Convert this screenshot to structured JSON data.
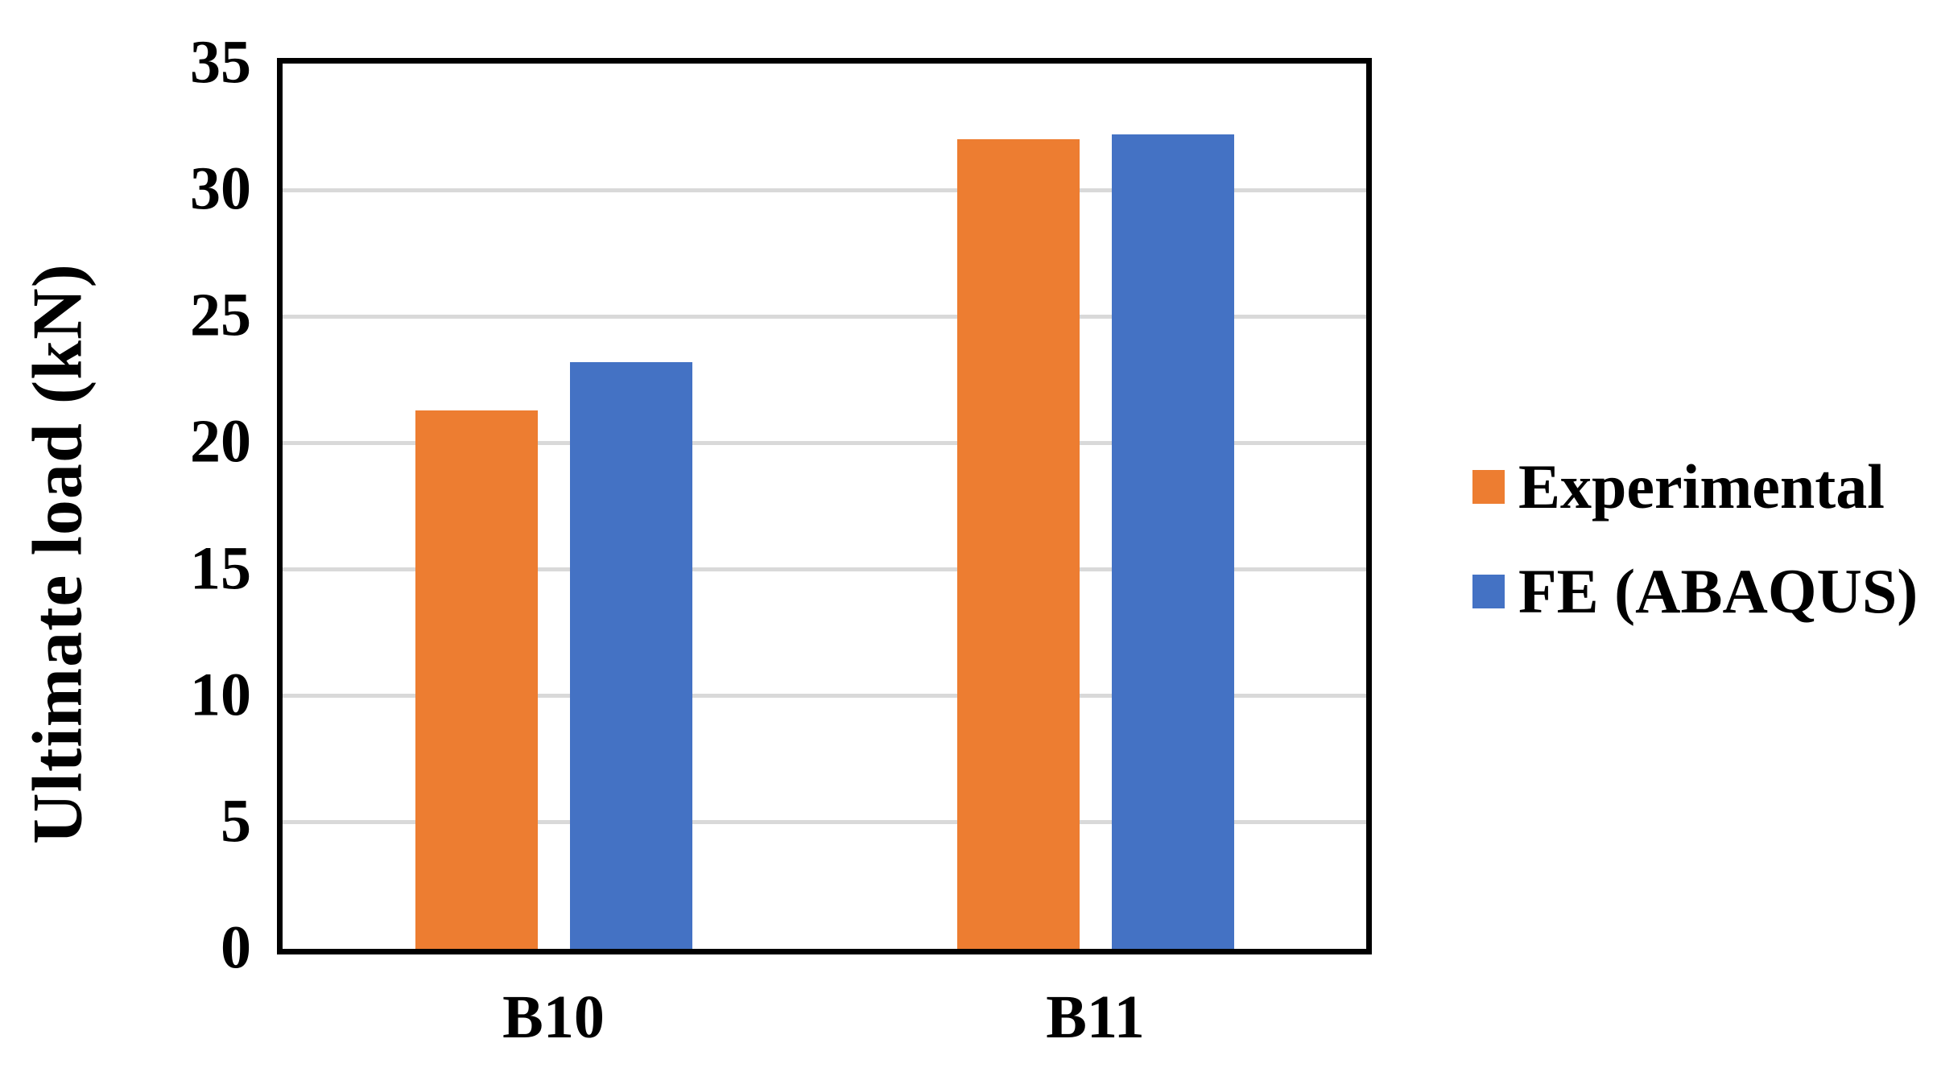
{
  "chart_data": {
    "type": "bar",
    "title": "",
    "categories": [
      "B10",
      "B11"
    ],
    "series": [
      {
        "name": "Experimental",
        "color": "#ED7D31",
        "values": [
          21.3,
          32.0
        ]
      },
      {
        "name": "FE (ABAQUS)",
        "color": "#4472C4",
        "values": [
          23.2,
          32.2
        ]
      }
    ],
    "xlabel": "",
    "ylabel": "Ultimate load (kN)",
    "ylim": [
      0,
      35
    ],
    "yticks": [
      0,
      5,
      10,
      15,
      20,
      25,
      30,
      35
    ],
    "grid": true,
    "gridline_color": "#D9D9D9",
    "axis_color": "#000000",
    "legend_position": "right"
  }
}
